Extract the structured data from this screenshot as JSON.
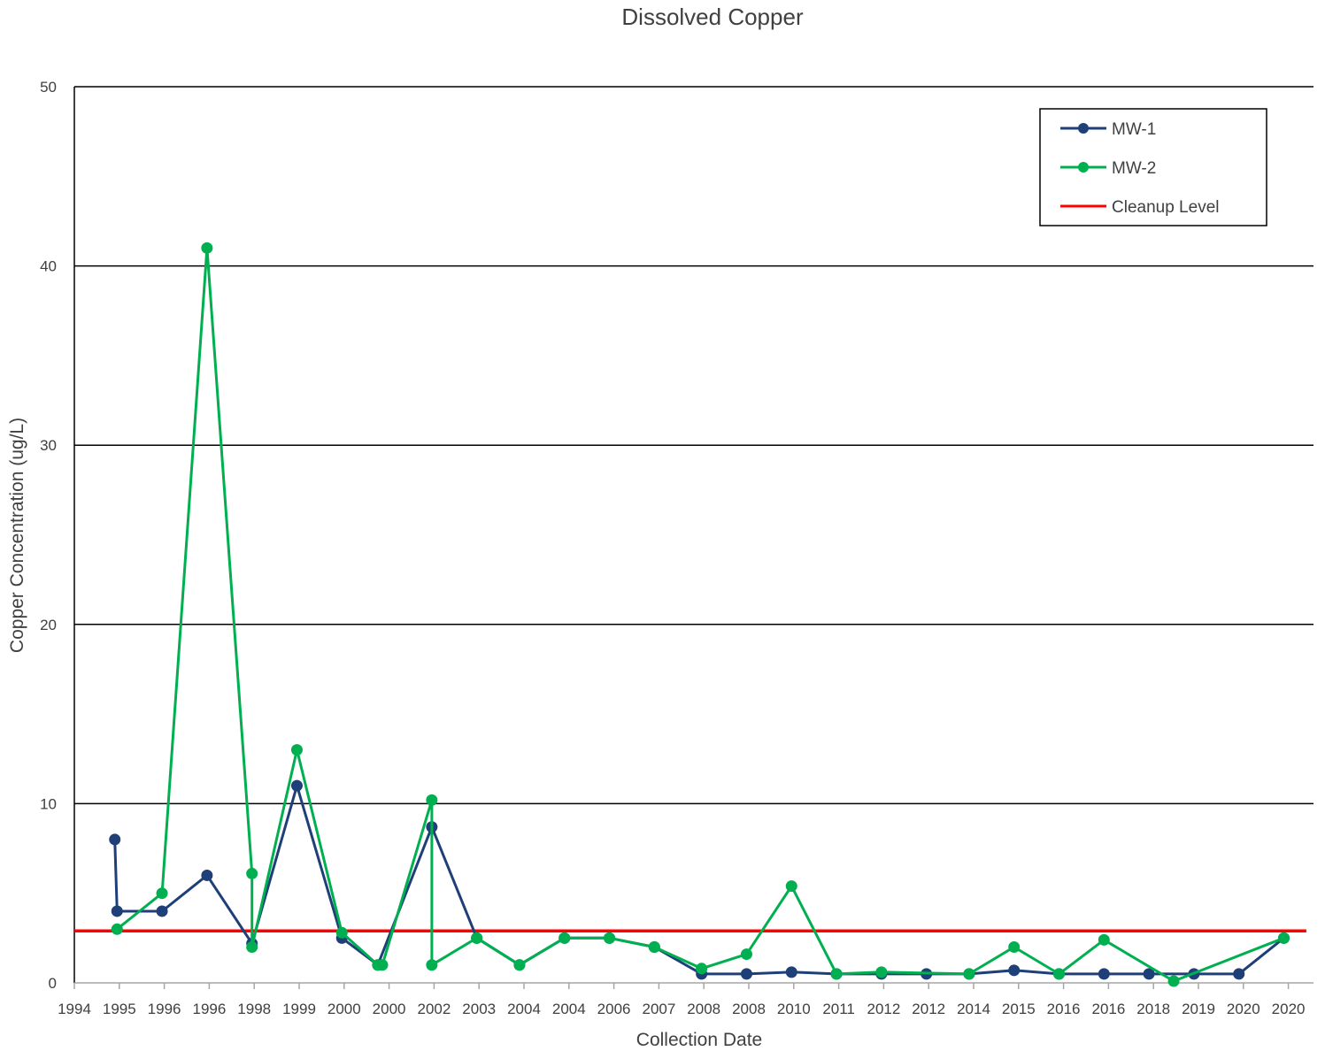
{
  "chart_data": {
    "type": "line",
    "title": "Dissolved Copper",
    "xlabel": "Collection Date",
    "ylabel": "Copper Concentration (ug/L)",
    "ylim": [
      0,
      50
    ],
    "yticks": [
      0,
      10,
      20,
      30,
      40,
      50
    ],
    "grid": "horizontal major gridlines",
    "legend_position": "top-right",
    "x_tick_labels": [
      "1994",
      "1995",
      "1996",
      "1996",
      "1998",
      "1999",
      "2000",
      "2000",
      "2002",
      "2003",
      "2004",
      "2004",
      "2006",
      "2007",
      "2008",
      "2008",
      "2010",
      "2011",
      "2012",
      "2012",
      "2014",
      "2015",
      "2016",
      "2016",
      "2018",
      "2019",
      "2020",
      "2020"
    ],
    "series": [
      {
        "name": "MW-1",
        "color": "#1f3f78",
        "x": [
          0.9,
          0.95,
          1.95,
          2.95,
          3.95,
          4.95,
          5.95,
          6.75,
          7.95,
          8.95,
          9.9,
          10.9,
          11.9,
          12.9,
          13.95,
          14.95,
          15.95,
          16.95,
          17.95,
          18.95,
          19.9,
          20.9,
          21.9,
          22.9,
          23.9,
          24.9,
          25.9,
          26.9
        ],
        "values": [
          8.0,
          4.0,
          4.0,
          6.0,
          2.2,
          11.0,
          2.5,
          1.0,
          8.7,
          2.5,
          1.0,
          2.5,
          2.5,
          2.0,
          0.5,
          0.5,
          0.6,
          0.5,
          0.5,
          0.5,
          0.5,
          0.7,
          0.5,
          0.5,
          0.5,
          0.5,
          0.5,
          2.5
        ]
      },
      {
        "name": "MW-2",
        "color": "#00b050",
        "x": [
          0.95,
          1.95,
          2.95,
          3.95,
          3.95,
          4.95,
          5.95,
          6.75,
          6.85,
          7.95,
          7.95,
          8.95,
          9.9,
          10.9,
          11.9,
          12.9,
          13.95,
          14.95,
          15.95,
          16.95,
          17.95,
          19.9,
          20.9,
          21.9,
          22.9,
          24.45,
          26.9
        ],
        "values": [
          3.0,
          5.0,
          41.0,
          6.1,
          2.0,
          13.0,
          2.8,
          1.0,
          1.0,
          10.2,
          1.0,
          2.5,
          1.0,
          2.5,
          2.5,
          2.0,
          0.8,
          1.6,
          5.4,
          0.5,
          0.6,
          0.5,
          2.0,
          0.5,
          2.4,
          0.1,
          2.5
        ]
      },
      {
        "name": "Cleanup Level",
        "color": "#ff0000",
        "x": [
          0,
          27.4
        ],
        "values": [
          2.9,
          2.9
        ]
      }
    ]
  }
}
